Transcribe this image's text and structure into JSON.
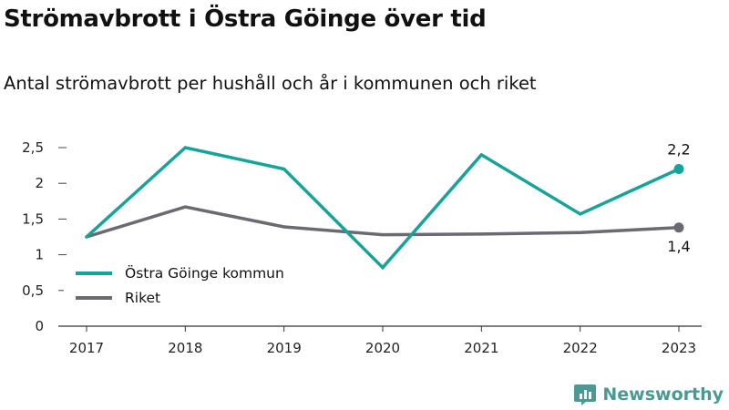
{
  "chart_data": {
    "type": "line",
    "title": "Strömavbrott i Östra Göinge över tid",
    "subtitle": "Antal strömavbrott per hushåll och år i kommunen och riket",
    "x": [
      "2017",
      "2018",
      "2019",
      "2020",
      "2021",
      "2022",
      "2023"
    ],
    "yticks": [
      0,
      0.5,
      1,
      1.5,
      2,
      2.5
    ],
    "ytick_labels": [
      "0",
      "0,5",
      "1",
      "1,5",
      "2",
      "2,5"
    ],
    "ylim": [
      0,
      2.6
    ],
    "grid": false,
    "legend_position": "bottom-left",
    "series": [
      {
        "name": "Östra Göinge kommun",
        "color": "#16a399",
        "values": [
          1.25,
          2.5,
          2.2,
          0.82,
          2.4,
          1.57,
          2.2
        ],
        "end_label": "2,2"
      },
      {
        "name": "Riket",
        "color": "#6b6971",
        "values": [
          1.25,
          1.67,
          1.39,
          1.28,
          1.29,
          1.31,
          1.38
        ],
        "end_label": "1,4"
      }
    ]
  },
  "brand": {
    "name": "Newsworthy",
    "logo_icon": "newsworthy-logo-icon",
    "color": "#4a9a93"
  }
}
